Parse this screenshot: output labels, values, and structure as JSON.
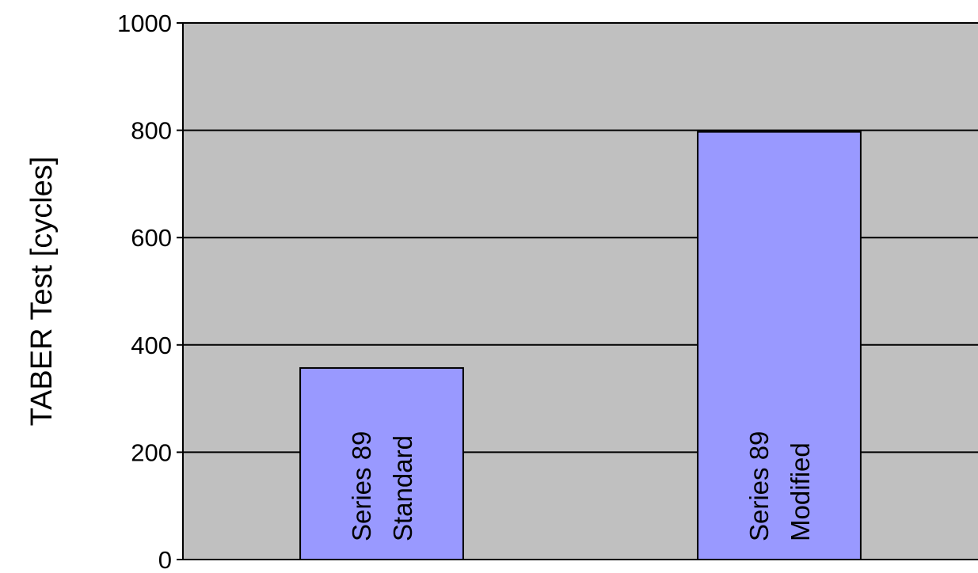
{
  "chart_data": {
    "type": "bar",
    "title": "",
    "xlabel": "",
    "ylabel": "TABER Test [cycles]",
    "ylim": [
      0,
      1000
    ],
    "yticks": [
      0,
      200,
      400,
      600,
      800,
      1000
    ],
    "grid": true,
    "legend": "none",
    "categories": [
      [
        "Series 89",
        "Standard"
      ],
      [
        "Series 89",
        "Modified"
      ]
    ],
    "values": [
      357,
      797
    ],
    "colors": {
      "bar": "#9999ff",
      "plot_background": "#c0c0c0",
      "gridline": "#000000"
    }
  }
}
